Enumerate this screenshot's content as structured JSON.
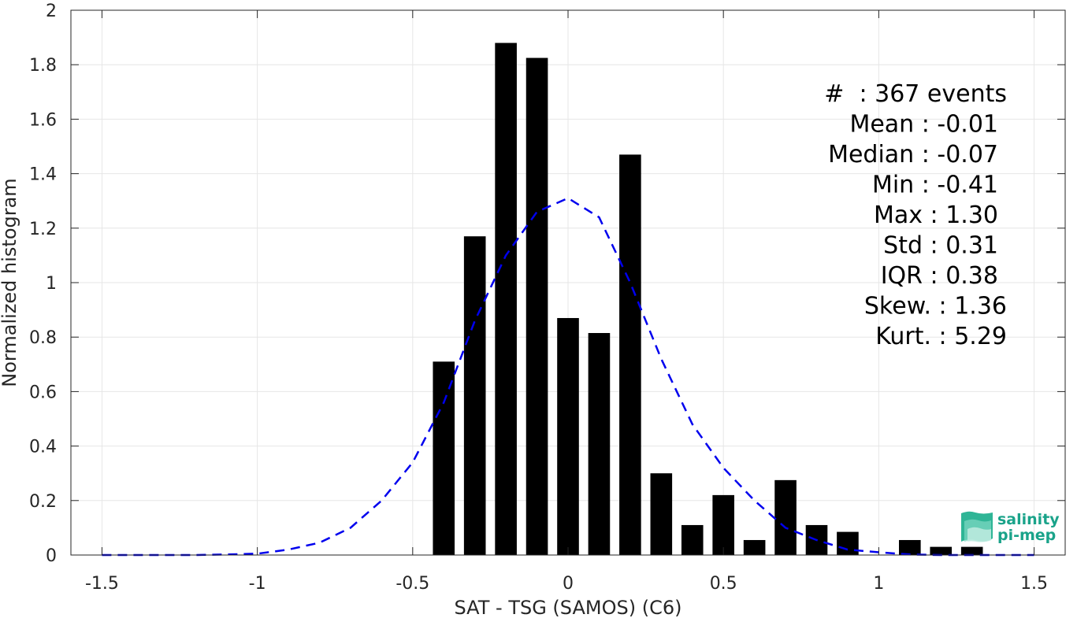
{
  "chart_data": {
    "type": "bar",
    "xlabel": "SAT - TSG (SAMOS) (C6)",
    "ylabel": "Normalized histogram",
    "xlim": [
      -1.6,
      1.6
    ],
    "ylim": [
      0,
      2
    ],
    "xticks": [
      -1.5,
      -1,
      -0.5,
      0,
      0.5,
      1,
      1.5
    ],
    "xtick_labels": [
      "-1.5",
      "-1",
      "-0.5",
      "0",
      "0.5",
      "1",
      "1.5"
    ],
    "yticks": [
      0,
      0.2,
      0.4,
      0.6,
      0.8,
      1,
      1.2,
      1.4,
      1.6,
      1.8,
      2
    ],
    "ytick_labels": [
      "0",
      "0.2",
      "0.4",
      "0.6",
      "0.8",
      "1",
      "1.2",
      "1.4",
      "1.6",
      "1.8",
      "2"
    ],
    "grid": true,
    "bar_width": 0.07,
    "bars": {
      "color": "#000000",
      "x": [
        -0.4,
        -0.3,
        -0.2,
        -0.1,
        0.0,
        0.1,
        0.2,
        0.3,
        0.4,
        0.5,
        0.6,
        0.7,
        0.8,
        0.9,
        1.0,
        1.1,
        1.2,
        1.3
      ],
      "values": [
        0.71,
        1.17,
        1.88,
        1.825,
        0.87,
        0.815,
        1.47,
        0.3,
        0.11,
        0.22,
        0.055,
        0.275,
        0.11,
        0.085,
        0.0,
        0.055,
        0.03,
        0.03
      ]
    },
    "fit_curve": {
      "color": "#0000ee",
      "style": "dashed",
      "x": [
        -1.5,
        -1.4,
        -1.3,
        -1.2,
        -1.1,
        -1.0,
        -0.9,
        -0.8,
        -0.7,
        -0.6,
        -0.5,
        -0.4,
        -0.3,
        -0.2,
        -0.1,
        0.0,
        0.1,
        0.2,
        0.3,
        0.4,
        0.5,
        0.6,
        0.7,
        0.8,
        0.9,
        1.0,
        1.1,
        1.2,
        1.3,
        1.4,
        1.5
      ],
      "y": [
        0.0,
        0.0,
        0.0,
        0.0,
        0.002,
        0.005,
        0.02,
        0.045,
        0.1,
        0.2,
        0.34,
        0.56,
        0.86,
        1.1,
        1.26,
        1.31,
        1.24,
        1.0,
        0.72,
        0.48,
        0.32,
        0.2,
        0.1,
        0.055,
        0.02,
        0.01,
        0.002,
        0.0,
        0.0,
        0.0,
        0.0
      ]
    },
    "stats": [
      {
        "label": "#  : 367 events"
      },
      {
        "label": "Mean : -0.01"
      },
      {
        "label": "Median : -0.07"
      },
      {
        "label": "Min : -0.41"
      },
      {
        "label": "Max : 1.30"
      },
      {
        "label": "Std : 0.31"
      },
      {
        "label": "IQR : 0.38"
      },
      {
        "label": "Skew. : 1.36"
      },
      {
        "label": "Kurt. : 5.29"
      }
    ]
  },
  "logo": {
    "line1": "salinity",
    "line2": "pi-mep",
    "color_line1": "#1aa38a",
    "color_line2": "#1aa38a"
  }
}
